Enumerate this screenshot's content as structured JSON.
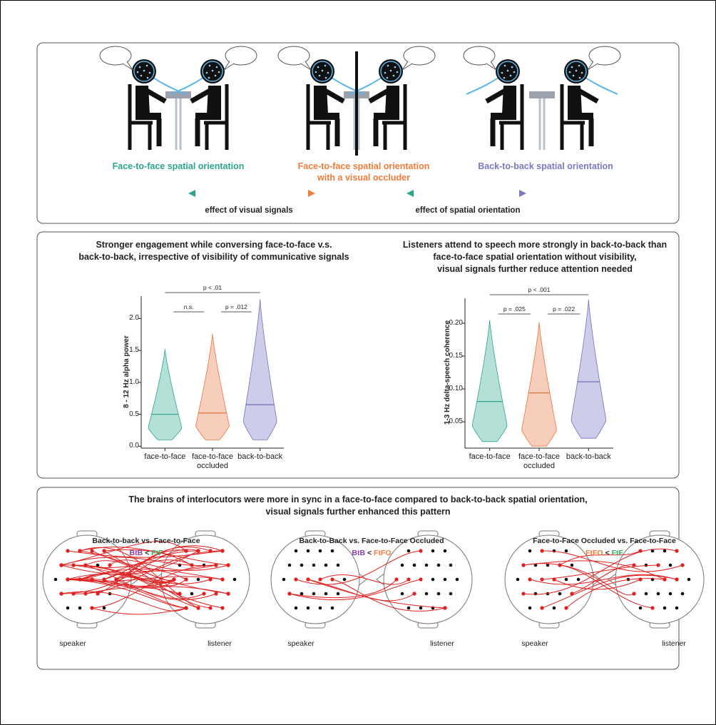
{
  "figure": {
    "scenes": [
      {
        "label": [
          "Face-to-face spatial orientation"
        ],
        "color": "#2ca58d"
      },
      {
        "label": [
          "Face-to-face spatial orientation",
          "with a visual occluder"
        ],
        "color": "#f07c3a"
      },
      {
        "label": [
          "Back-to-back spatial orientation"
        ],
        "color": "#7a78c0"
      }
    ],
    "effects": [
      "effect of visual signals",
      "effect of spatial orientation"
    ],
    "sync": {
      "title": [
        "The brains of interlocutors were more in sync in a face-to-face compared to back-to-back spatial orientation,",
        "visual signals further enhanced this pattern"
      ],
      "panels": [
        {
          "title": "Back-to-back vs. Face-to-Face",
          "left": "BtB",
          "op": "<",
          "right": "FtF",
          "left_color": "#8a3fa8",
          "right_color": "#3aaa5c",
          "speaker": "speaker",
          "listener": "listener"
        },
        {
          "title": "Back-to-Back vs. Face-to-Face Occluded",
          "left": "BtB",
          "op": "<",
          "right": "FtFO",
          "left_color": "#8a3fa8",
          "right_color": "#f07c3a",
          "speaker": "speaker",
          "listener": "listener"
        },
        {
          "title": "Face-to-Face Occluded vs. Face-to-Face",
          "left": "FtFO",
          "op": "<",
          "right": "FtF",
          "left_color": "#f07c3a",
          "right_color": "#3aaa5c",
          "speaker": "speaker",
          "listener": "listener"
        }
      ]
    }
  },
  "chart_data": [
    {
      "type": "violin",
      "title": [
        "Stronger engagement while conversing face-to-face v.s.",
        "back-to-back, irrespective of visibility of communicative signals"
      ],
      "ylabel": "8 - 12 Hz alpha power",
      "categories": [
        "face-to-face",
        "face-to-face occluded",
        "back-to-back"
      ],
      "colors": [
        "#2ca58d",
        "#e8743b",
        "#7070c0"
      ],
      "min": [
        0.1,
        0.1,
        0.1
      ],
      "median": [
        0.5,
        0.52,
        0.65
      ],
      "max": [
        1.52,
        1.76,
        2.3
      ],
      "ylim": [
        -0.03,
        2.35
      ],
      "yticks": [
        {
          "value": 0,
          "label": "0.0"
        },
        {
          "value": 0.5,
          "label": "0.5"
        },
        {
          "value": 1,
          "label": "1.0"
        },
        {
          "value": 1.5,
          "label": "1.5"
        },
        {
          "value": 2,
          "label": "2.0"
        }
      ],
      "comparisons": [
        {
          "text": "p < .01",
          "from": 0,
          "to": 2
        },
        {
          "text": "n.s.",
          "from": 0,
          "to": 1
        },
        {
          "text": "p = .012",
          "from": 1,
          "to": 2
        }
      ]
    },
    {
      "type": "violin",
      "title": [
        "Listeners attend to speech more strongly in back-to-back than",
        "face-to-face spatial orientation without visibility,",
        "visual signals further reduce attention needed"
      ],
      "ylabel": "1-3 Hz delta-speech coherence",
      "categories": [
        "face-to-face",
        "face-to-face occluded",
        "back-to-back"
      ],
      "colors": [
        "#2ca58d",
        "#e8743b",
        "#7070c0"
      ],
      "min": [
        0.02,
        0.013,
        0.025
      ],
      "median": [
        0.081,
        0.094,
        0.111
      ],
      "max": [
        0.205,
        0.202,
        0.236
      ],
      "ylim": [
        0.01,
        0.238
      ],
      "yticks": [
        {
          "value": 0.05,
          "label": "0.05"
        },
        {
          "value": 0.1,
          "label": "0.10"
        },
        {
          "value": 0.15,
          "label": "0.15"
        },
        {
          "value": 0.2,
          "label": "0.20"
        }
      ],
      "comparisons": [
        {
          "text": "p < .001",
          "from": 0,
          "to": 2
        },
        {
          "text": "p = .025",
          "from": 0,
          "to": 1
        },
        {
          "text": "p = .022",
          "from": 1,
          "to": 2
        }
      ]
    }
  ]
}
